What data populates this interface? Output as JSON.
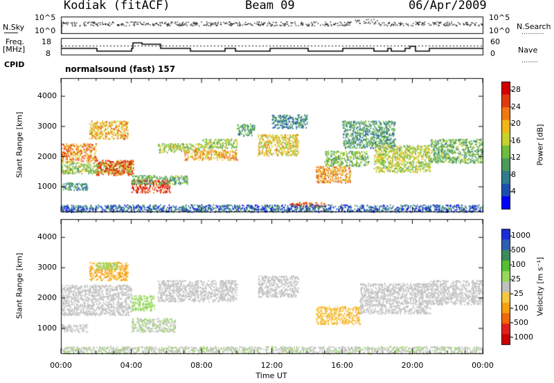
{
  "header": {
    "station": "Kodiak (fitACF)",
    "beam": "Beam 09",
    "date": "06/Apr/2009"
  },
  "noise_panel": {
    "left_label": "N.Sky",
    "right_label": "N.Search",
    "ticks": [
      "10^5",
      "10^0"
    ]
  },
  "freq_panel": {
    "left_label_1": "Freq.",
    "left_label_2": "[MHz]",
    "left_ticks": [
      "18",
      "8"
    ],
    "right_ticks": [
      "60",
      "0"
    ],
    "right_label": "Nave"
  },
  "cpid": {
    "label": "CPID",
    "value": "normalsound (fast) 157"
  },
  "colors": {
    "power_scale": [
      "#0000ff",
      "#1d4fb0",
      "#2e7d8c",
      "#4a9a5a",
      "#6fbd3a",
      "#c8d22c",
      "#f0b818",
      "#f07a10",
      "#e23a10",
      "#d40000"
    ],
    "velocity_scale": [
      "#1a2fd8",
      "#2f5db3",
      "#3c8a5c",
      "#57c032",
      "#96d85a",
      "#c0c0c0",
      "#f5c842",
      "#f5a010",
      "#ef6a0a",
      "#e02020",
      "#cc0000"
    ]
  },
  "chart_data": [
    {
      "type": "heatmap",
      "title": "",
      "xlabel": "Time UT",
      "ylabel": "Slant Range [km]",
      "x_ticks": [
        "00:00",
        "04:00",
        "08:00",
        "12:00",
        "16:00",
        "20:00",
        "00:00"
      ],
      "y_ticks": [
        "1000",
        "2000",
        "3000",
        "4000"
      ],
      "xlim": [
        0,
        24
      ],
      "ylim": [
        180,
        4600
      ],
      "colorbar": {
        "label": "Power [dB]",
        "ticks": [
          "4",
          "8",
          "12",
          "16",
          "20",
          "24",
          "28"
        ],
        "range": [
          0,
          30
        ]
      },
      "regions": [
        {
          "t0": 0.0,
          "t1": 2.0,
          "r0": 1850,
          "r1": 2450,
          "v": 22
        },
        {
          "t0": 0.0,
          "t1": 4.0,
          "r0": 1450,
          "r1": 1850,
          "v": 14
        },
        {
          "t0": 0.0,
          "t1": 1.5,
          "r0": 900,
          "r1": 1150,
          "v": 9
        },
        {
          "t0": 1.6,
          "t1": 3.8,
          "r0": 2600,
          "r1": 3200,
          "v": 20
        },
        {
          "t0": 2.0,
          "t1": 4.1,
          "r0": 1400,
          "r1": 1900,
          "v": 25
        },
        {
          "t0": 4.0,
          "t1": 6.2,
          "r0": 820,
          "r1": 1250,
          "v": 27
        },
        {
          "t0": 4.0,
          "t1": 7.2,
          "r0": 1100,
          "r1": 1400,
          "v": 12
        },
        {
          "t0": 5.5,
          "t1": 8.2,
          "r0": 2150,
          "r1": 2450,
          "v": 15
        },
        {
          "t0": 7.0,
          "t1": 10.0,
          "r0": 1900,
          "r1": 2250,
          "v": 20
        },
        {
          "t0": 8.0,
          "t1": 10.0,
          "r0": 2300,
          "r1": 2600,
          "v": 14
        },
        {
          "t0": 11.2,
          "t1": 13.5,
          "r0": 2050,
          "r1": 2750,
          "v": 18
        },
        {
          "t0": 10.0,
          "t1": 11.0,
          "r0": 2700,
          "r1": 3100,
          "v": 10
        },
        {
          "t0": 12.0,
          "t1": 14.0,
          "r0": 2950,
          "r1": 3400,
          "v": 8
        },
        {
          "t0": 14.5,
          "t1": 16.5,
          "r0": 1150,
          "r1": 1700,
          "v": 21
        },
        {
          "t0": 15.0,
          "t1": 17.5,
          "r0": 1700,
          "r1": 2200,
          "v": 13
        },
        {
          "t0": 16.0,
          "t1": 19.0,
          "r0": 2300,
          "r1": 3200,
          "v": 10
        },
        {
          "t0": 17.8,
          "t1": 21.0,
          "r0": 1500,
          "r1": 2400,
          "v": 16
        },
        {
          "t0": 21.0,
          "t1": 24.0,
          "r0": 1800,
          "r1": 2600,
          "v": 12
        },
        {
          "t0": 13.0,
          "t1": 15.0,
          "r0": 350,
          "r1": 500,
          "v": 25
        },
        {
          "t0": 0.0,
          "t1": 24.0,
          "r0": 180,
          "r1": 420,
          "v": 6
        }
      ]
    },
    {
      "type": "heatmap",
      "title": "",
      "xlabel": "Time UT",
      "ylabel": "Slant Range [km]",
      "x_ticks": [
        "00:00",
        "04:00",
        "08:00",
        "12:00",
        "16:00",
        "20:00",
        "00:00"
      ],
      "y_ticks": [
        "1000",
        "2000",
        "3000",
        "4000"
      ],
      "xlim": [
        0,
        24
      ],
      "ylim": [
        180,
        4600
      ],
      "colorbar": {
        "label": "Velocity [m s⁻¹]",
        "ticks": [
          "1000",
          "500",
          "100",
          "25",
          "-25",
          "-100",
          "-500",
          "-1000"
        ],
        "range": [
          -1000,
          1000
        ]
      },
      "regions": [
        {
          "t0": 0.0,
          "t1": 4.0,
          "r0": 1450,
          "r1": 2450,
          "v": 0
        },
        {
          "t0": 0.0,
          "t1": 1.5,
          "r0": 900,
          "r1": 1150,
          "v": 0
        },
        {
          "t0": 1.6,
          "t1": 3.8,
          "r0": 2600,
          "r1": 3200,
          "v": -300
        },
        {
          "t0": 2.0,
          "t1": 3.2,
          "r0": 2950,
          "r1": 3200,
          "v": 150
        },
        {
          "t0": 4.0,
          "t1": 6.5,
          "r0": 900,
          "r1": 1350,
          "v": 80
        },
        {
          "t0": 4.0,
          "t1": 5.3,
          "r0": 1600,
          "r1": 2100,
          "v": 200
        },
        {
          "t0": 5.5,
          "t1": 10.0,
          "r0": 1900,
          "r1": 2600,
          "v": 0
        },
        {
          "t0": 11.2,
          "t1": 13.5,
          "r0": 2050,
          "r1": 2750,
          "v": 0
        },
        {
          "t0": 14.5,
          "t1": 17.0,
          "r0": 1150,
          "r1": 1750,
          "v": -250
        },
        {
          "t0": 17.0,
          "t1": 21.0,
          "r0": 1500,
          "r1": 2500,
          "v": 0
        },
        {
          "t0": 21.0,
          "t1": 24.0,
          "r0": 1800,
          "r1": 2600,
          "v": 0
        },
        {
          "t0": 0.0,
          "t1": 24.0,
          "r0": 180,
          "r1": 420,
          "v": 60
        }
      ]
    }
  ]
}
